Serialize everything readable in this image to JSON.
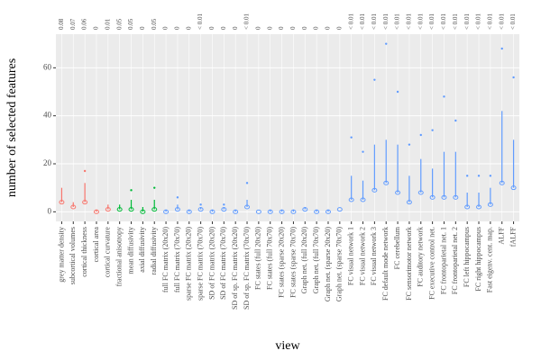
{
  "chart_data": {
    "type": "box",
    "y_label": "number of selected features",
    "x_label": "view",
    "categories": [
      "grey matter density",
      "subcortical volumes",
      "cortical thickness",
      "cortical area",
      "cortical curvature",
      "fractional anisotropy",
      "mean diffusivity",
      "axial diffusivity",
      "radial diffusivity",
      "full FC matrix (20x20)",
      "full FC matrix (70x70)",
      "sparse FC matrix (20x20)",
      "sparse FC matrix (70x70)",
      "SD of FC matrix (20x20)",
      "SD of FC matrix (70x70)",
      "SD of sp. FC matrix (20x20)",
      "SD of sp. FC matrix (70x70)",
      "FC states (full 20x20)",
      "FC states (full 70x70)",
      "FC states (sparse 20x20)",
      "FC states (sparse 70x70)",
      "Graph net. (full 20x20)",
      "Graph net. (full 70x70)",
      "Graph net. (sparse 20x20)",
      "Graph net. (sparse 70x70)",
      "FC visual network 1",
      "FC visual network 2",
      "FC visual network 3",
      "FC default mode network",
      "FC cerebellum",
      "FC sensorimotor network",
      "FC auditory network",
      "FC executive control net.",
      "FC frontoparietal net. 1",
      "FC frontoparietal net. 2",
      "FC left hippocampus",
      "FC right hippocampus",
      "Fast eigenv. cent. map.",
      "ALFF",
      "fALFF"
    ],
    "p_values": [
      "0.08",
      "0.07",
      "0.06",
      "0",
      "0.01",
      "0.05",
      "0.05",
      "0",
      "0.05",
      "0",
      "0",
      "0",
      "< 0.01",
      "0",
      "0",
      "0",
      "< 0.01",
      "0",
      "0",
      "0",
      "0",
      "0",
      "0",
      "0",
      "0",
      "< 0.01",
      "< 0.01",
      "< 0.01",
      "< 0.01",
      "< 0.01",
      "< 0.01",
      "< 0.01",
      "< 0.01",
      "< 0.01",
      "< 0.01",
      "< 0.01",
      "< 0.01",
      "< 0.01",
      "< 0.01",
      "< 0.01"
    ],
    "colors": [
      "#f8766d",
      "#f8766d",
      "#f8766d",
      "#f8766d",
      "#f8766d",
      "#00ba38",
      "#00ba38",
      "#00ba38",
      "#00ba38",
      "#619cff",
      "#619cff",
      "#619cff",
      "#619cff",
      "#619cff",
      "#619cff",
      "#619cff",
      "#619cff",
      "#619cff",
      "#619cff",
      "#619cff",
      "#619cff",
      "#619cff",
      "#619cff",
      "#619cff",
      "#619cff",
      "#619cff",
      "#619cff",
      "#619cff",
      "#619cff",
      "#619cff",
      "#619cff",
      "#619cff",
      "#619cff",
      "#619cff",
      "#619cff",
      "#619cff",
      "#619cff",
      "#619cff",
      "#619cff",
      "#619cff"
    ],
    "median": [
      4,
      2,
      4,
      0,
      1,
      1,
      1,
      0,
      1,
      0,
      1,
      0,
      1,
      0,
      1,
      0,
      2,
      0,
      0,
      0,
      0,
      1,
      0,
      0,
      1,
      5,
      5,
      9,
      12,
      8,
      4,
      8,
      6,
      6,
      6,
      2,
      2,
      3,
      12,
      10
    ],
    "whisker_high": [
      10,
      4,
      12,
      1,
      3,
      3,
      5,
      2,
      5,
      1,
      3,
      1,
      2,
      1,
      2,
      1,
      5,
      0,
      1,
      1,
      1,
      2,
      1,
      1,
      1,
      15,
      13,
      28,
      30,
      28,
      15,
      22,
      18,
      25,
      25,
      8,
      8,
      10,
      42,
      30
    ],
    "max_outlier": [
      null,
      null,
      17,
      null,
      null,
      null,
      9,
      null,
      10,
      null,
      6,
      null,
      3,
      null,
      3,
      null,
      12,
      null,
      null,
      null,
      null,
      null,
      null,
      null,
      null,
      31,
      25,
      55,
      70,
      50,
      28,
      32,
      34,
      48,
      38,
      15,
      15,
      15,
      68,
      56
    ],
    "ylim": [
      -4,
      74
    ],
    "yticks": [
      0,
      20,
      40,
      60
    ],
    "grid": true
  }
}
